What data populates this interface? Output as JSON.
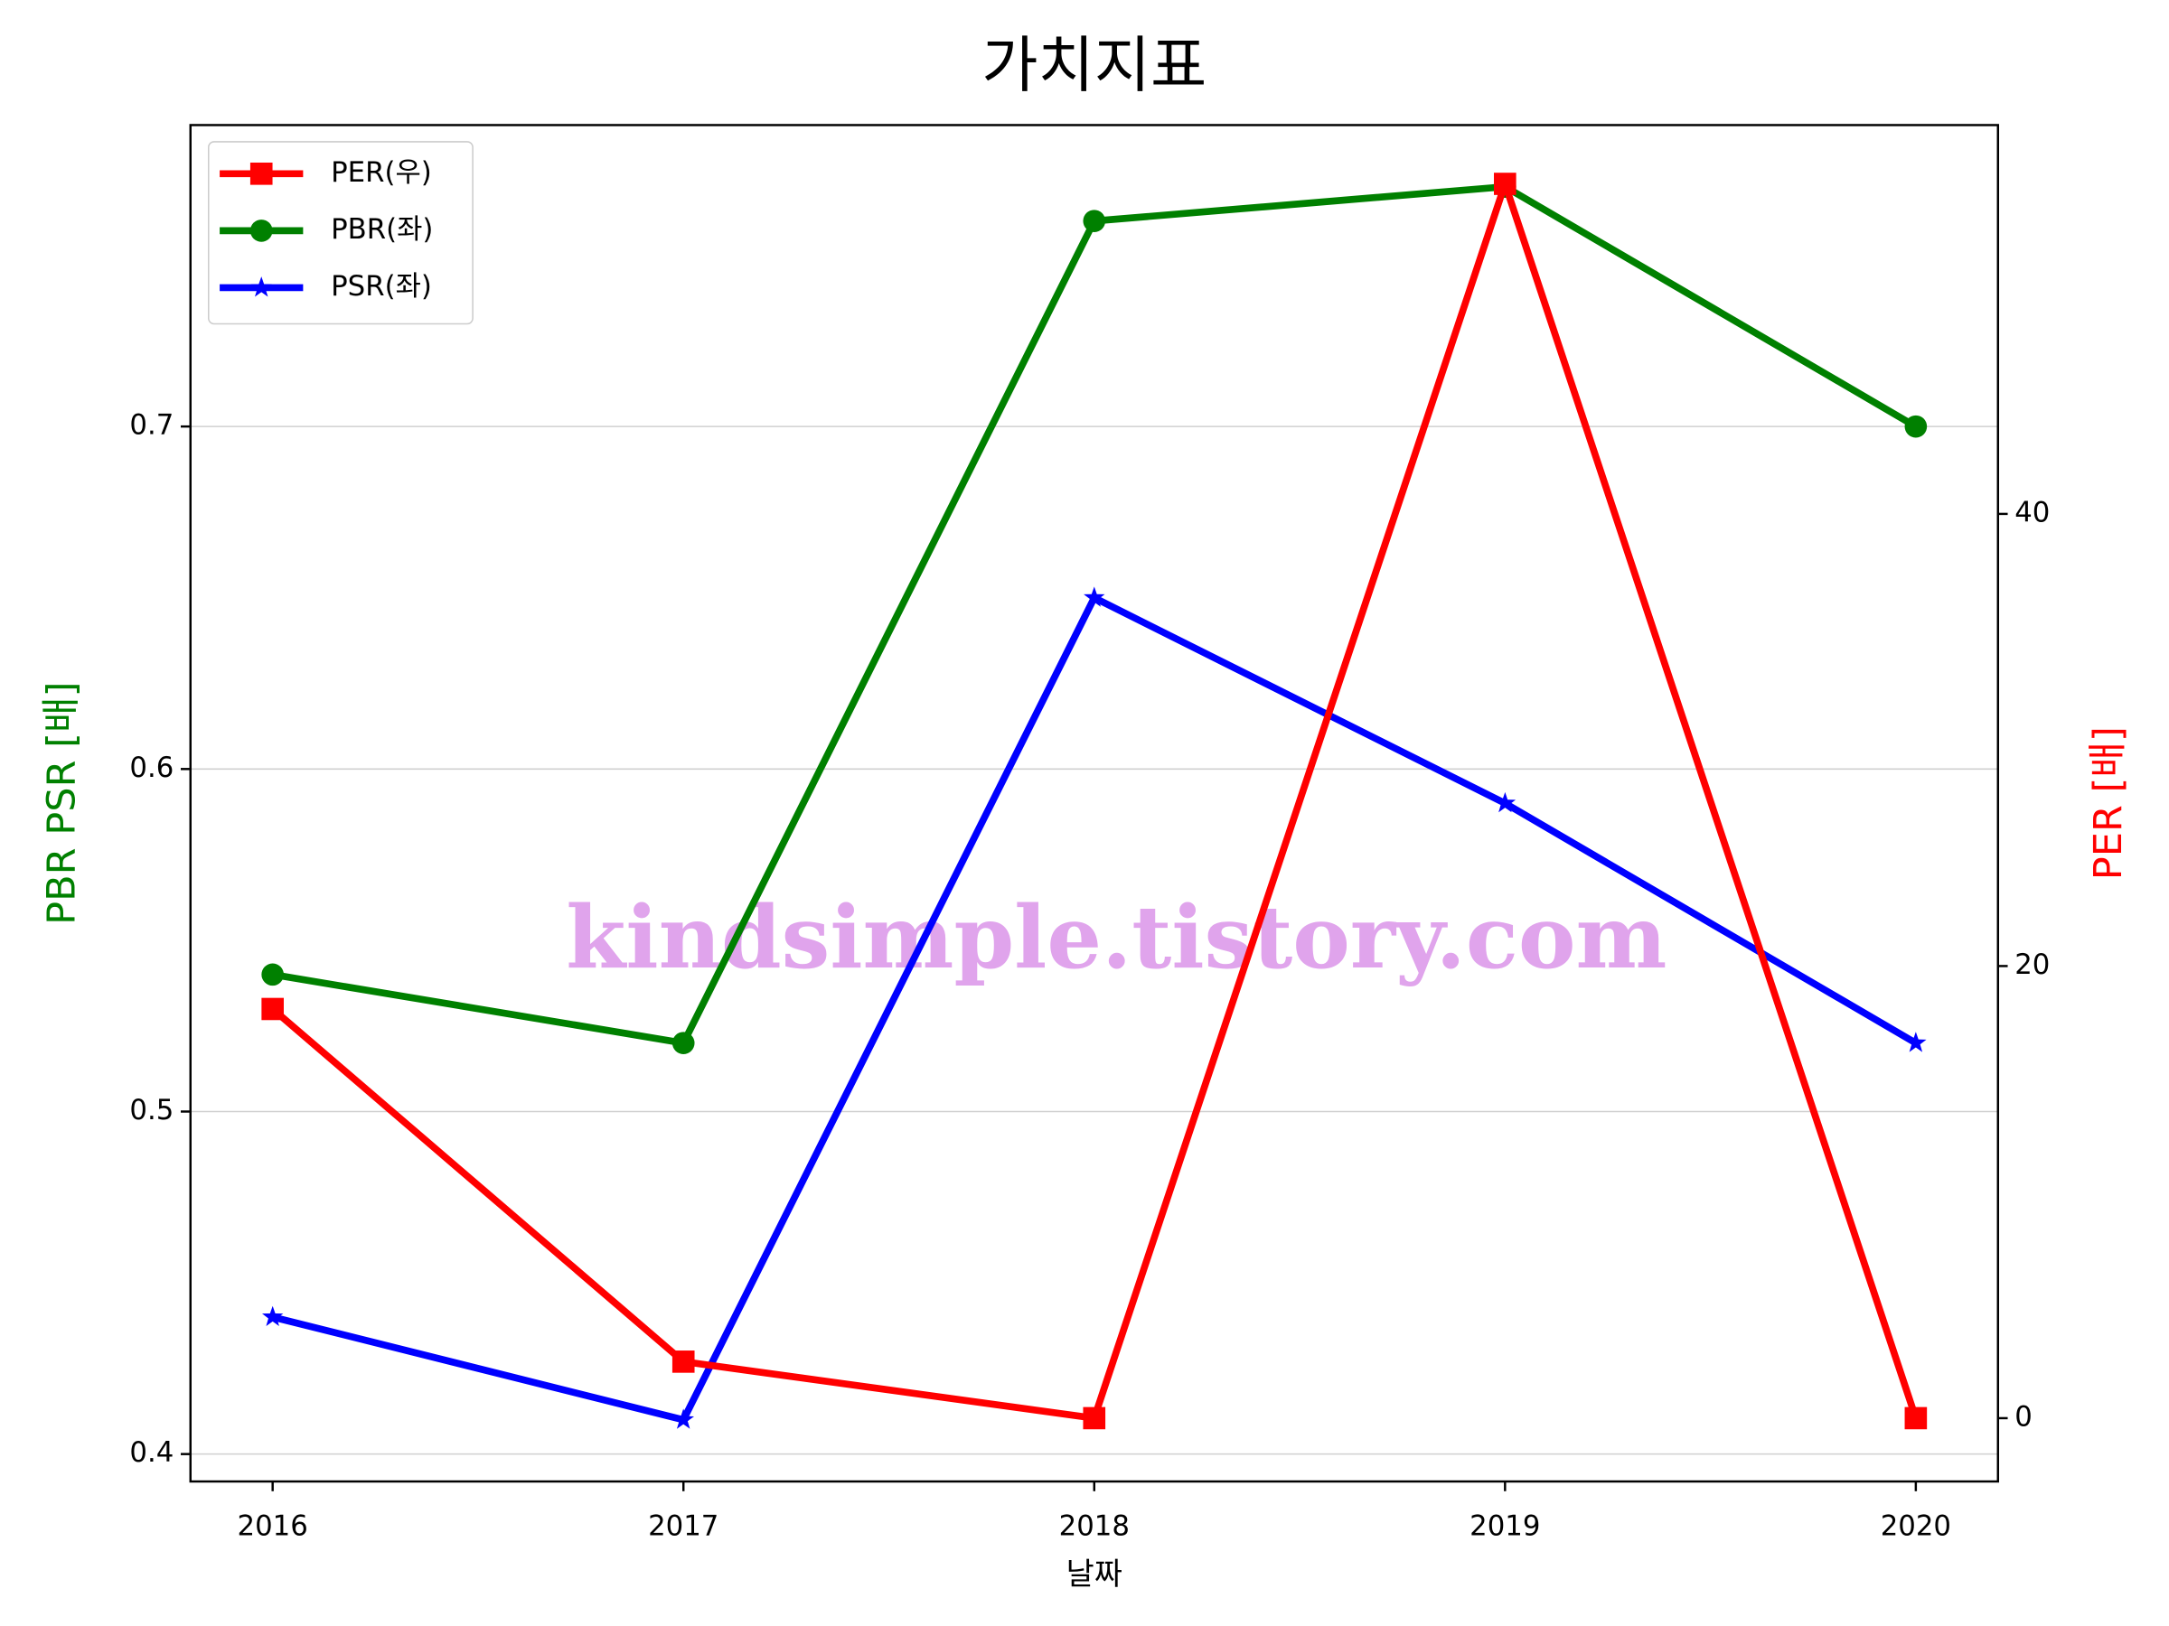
{
  "chart_data": {
    "type": "line",
    "title": "가치지표",
    "xlabel": "날짜",
    "ylabel": "PBR PSR [배]",
    "y2label": "PER [배]",
    "watermark": "kindsimple.tistory.com",
    "x": [
      2016,
      2017,
      2018,
      2019,
      2020
    ],
    "xlim": [
      2015.8,
      2020.2
    ],
    "xticks": [
      2016,
      2017,
      2018,
      2019,
      2020
    ],
    "ylim": [
      0.392,
      0.788
    ],
    "yticks": [
      0.4,
      0.5,
      0.6,
      0.7
    ],
    "y2lim": [
      -2.8,
      57.2
    ],
    "y2ticks": [
      0,
      20,
      40
    ],
    "grid": true,
    "legend": "upper left",
    "series": [
      {
        "name": "PER(우)",
        "color": "#ff0000",
        "marker": "square",
        "axis": "y2",
        "values": [
          18.1,
          2.5,
          0,
          54.6,
          0
        ]
      },
      {
        "name": "PBR(좌)",
        "color": "#008000",
        "marker": "circle",
        "values": [
          0.54,
          0.52,
          0.76,
          0.77,
          0.7
        ]
      },
      {
        "name": "PSR(좌)",
        "color": "#0000ff",
        "marker": "star",
        "values": [
          0.44,
          0.41,
          0.65,
          0.59,
          0.52
        ]
      }
    ]
  }
}
